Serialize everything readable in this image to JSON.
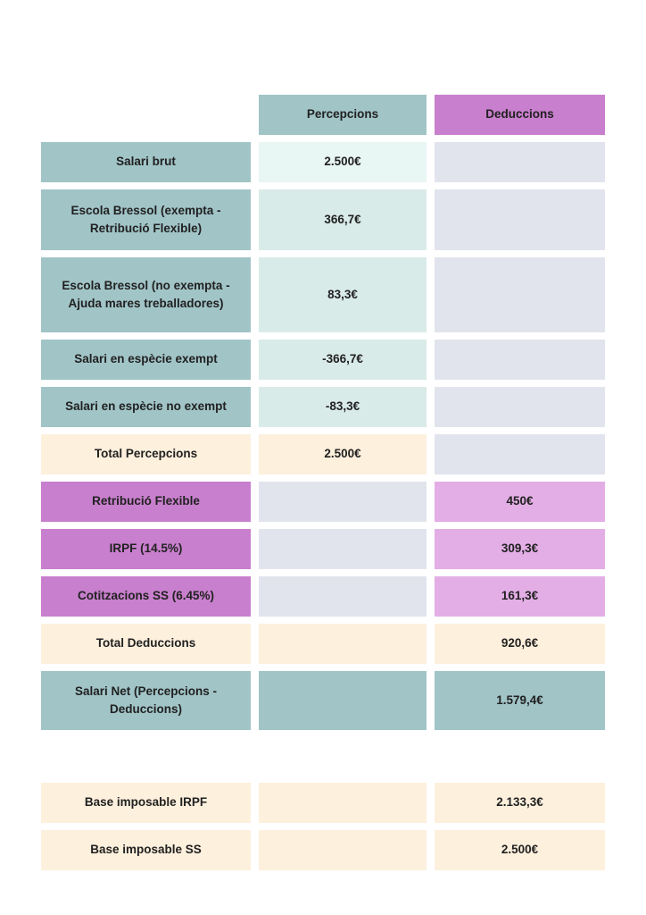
{
  "colors": {
    "background": "#ffffff",
    "text": "#212121",
    "teal_header": "#a1c4c7",
    "teal_value_row1": "#e8f6f4",
    "teal_value": "#d9ebe9",
    "gray_empty": "#e2e4ed",
    "cream_total": "#fdf0dd",
    "purple_header": "#c87fcd",
    "purple_value": "#e3aee6"
  },
  "table": {
    "headers": {
      "percepcions": "Percepcions",
      "deduccions": "Deduccions"
    },
    "rows": [
      {
        "label": "Salari brut",
        "percepcions": "2.500€",
        "deduccions": ""
      },
      {
        "label": "Escola Bressol (exempta - Retribució Flexible)",
        "percepcions": "366,7€",
        "deduccions": ""
      },
      {
        "label": "Escola Bressol (no exempta - Ajuda mares treballadores)",
        "percepcions": "83,3€",
        "deduccions": ""
      },
      {
        "label": "Salari en espècie exempt",
        "percepcions": "-366,7€",
        "deduccions": ""
      },
      {
        "label": "Salari en espècie no exempt",
        "percepcions": "-83,3€",
        "deduccions": ""
      },
      {
        "label": "Total Percepcions",
        "percepcions": "2.500€",
        "deduccions": ""
      },
      {
        "label": "Retribució Flexible",
        "percepcions": "",
        "deduccions": "450€"
      },
      {
        "label": "IRPF (14.5%)",
        "percepcions": "",
        "deduccions": "309,3€"
      },
      {
        "label": "Cotitzacions SS (6.45%)",
        "percepcions": "",
        "deduccions": "161,3€"
      },
      {
        "label": "Total Deduccions",
        "percepcions": "",
        "deduccions": "920,6€"
      },
      {
        "label": "Salari Net (Percepcions - Deduccions)",
        "percepcions": "",
        "deduccions": "1.579,4€"
      }
    ],
    "summary_rows": [
      {
        "label": "Base imposable IRPF",
        "percepcions": "",
        "deduccions": "2.133,3€"
      },
      {
        "label": "Base imposable SS",
        "percepcions": "",
        "deduccions": "2.500€"
      }
    ]
  }
}
